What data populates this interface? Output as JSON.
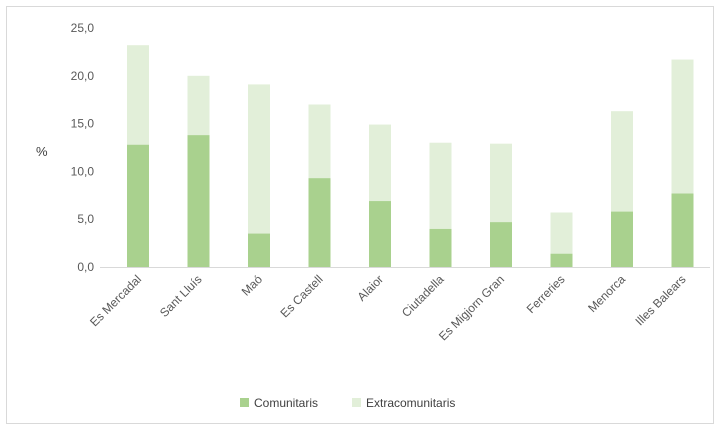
{
  "chart_data": {
    "type": "bar",
    "stacked": true,
    "ylabel": "%",
    "ylim": [
      0,
      25
    ],
    "yticks": [
      "0,0",
      "5,0",
      "10,0",
      "15,0",
      "20,0",
      "25,0"
    ],
    "grid": false,
    "legend_position": "bottom",
    "categories": [
      "Es Mercadal",
      "Sant Lluís",
      "Maó",
      "Es Castell",
      "Alaior",
      "Ciutadella",
      "Es Migjorn Gran",
      "Ferreries",
      "Menorca",
      "Illes Balears"
    ],
    "series": [
      {
        "name": "Comunitaris",
        "color": "#a9d18e",
        "values": [
          12.8,
          13.8,
          3.5,
          9.3,
          6.9,
          4.0,
          4.7,
          1.4,
          5.8,
          7.7
        ]
      },
      {
        "name": "Extracomunitaris",
        "color": "#e2efd9",
        "values": [
          10.4,
          6.2,
          15.6,
          7.7,
          8.0,
          9.0,
          8.2,
          4.3,
          10.5,
          14.0
        ]
      }
    ]
  }
}
